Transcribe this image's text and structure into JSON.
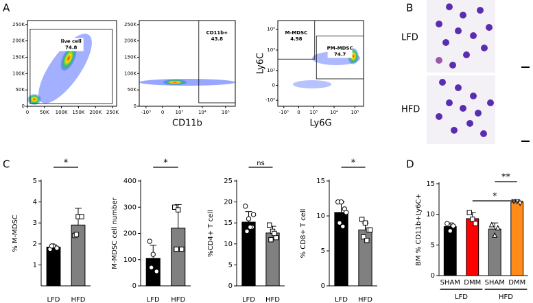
{
  "chart_data": [
    {
      "type": "flow",
      "panel": "A",
      "xscale": "linear",
      "yscale": "linear",
      "xlim": [
        0,
        262144
      ],
      "ylim": [
        0,
        262144
      ],
      "xticks": [
        0,
        {
          "value": 50000,
          "label": "50K"
        },
        {
          "value": 100000,
          "label": "100K"
        },
        {
          "value": 150000,
          "label": "150K"
        },
        {
          "value": 200000,
          "label": "200K"
        },
        {
          "value": 250000,
          "label": "250K"
        }
      ],
      "yticks": [
        0,
        {
          "value": 50000,
          "label": "50K"
        },
        {
          "value": 100000,
          "label": "100K"
        },
        {
          "value": 150000,
          "label": "150K"
        },
        {
          "value": 200000,
          "label": "200K"
        },
        {
          "value": 250000,
          "label": "250K"
        }
      ],
      "gates": [
        {
          "name": "live cell",
          "value": 74.8
        }
      ]
    },
    {
      "type": "flow",
      "xlabel": "CD11b",
      "xscale": "biexponential",
      "yscale": "linear",
      "xlim": [
        -2000,
        262144
      ],
      "ylim": [
        0,
        262144
      ],
      "xticks": [
        {
          "value": -1000,
          "label": "-10³"
        },
        0,
        {
          "value": 1000,
          "label": "10³"
        },
        {
          "value": 10000,
          "label": "10⁴"
        },
        {
          "value": 100000,
          "label": "10⁵"
        }
      ],
      "yticks": [
        0,
        {
          "value": 50000,
          "label": "50K"
        },
        {
          "value": 100000,
          "label": "100K"
        },
        {
          "value": 150000,
          "label": "150K"
        },
        {
          "value": 200000,
          "label": "200K"
        },
        {
          "value": 250000,
          "label": "250K"
        }
      ],
      "gates": [
        {
          "name": "CD11b+",
          "value": 43.8
        }
      ]
    },
    {
      "type": "flow",
      "xlabel": "Ly6G",
      "ylabel": "Ly6C",
      "xscale": "biexponential",
      "yscale": "biexponential",
      "xlim": [
        -2000,
        262144
      ],
      "ylim": [
        -2000,
        262144
      ],
      "xticks": [
        {
          "value": -1000,
          "label": "-10³"
        },
        0,
        {
          "value": 1000,
          "label": "10³"
        },
        {
          "value": 10000,
          "label": "10⁴"
        },
        {
          "value": 100000,
          "label": "10⁵"
        }
      ],
      "yticks": [
        {
          "value": -1000,
          "label": "-10³"
        },
        0,
        {
          "value": 1000,
          "label": "10³"
        },
        {
          "value": 10000,
          "label": "10⁴"
        },
        {
          "value": 100000,
          "label": "10⁵"
        }
      ],
      "gates": [
        {
          "name": "M-MDSC",
          "value": 4.98
        },
        {
          "name": "PM-MDSC",
          "value": 74.7
        }
      ]
    },
    {
      "type": "image",
      "panel": "B",
      "labels": [
        "LFD",
        "HFD"
      ]
    },
    {
      "type": "bar",
      "panel": "C",
      "ylabel": "% M-MDSC",
      "categories": [
        "LFD",
        "HFD"
      ],
      "values": [
        1.85,
        2.9
      ],
      "errors": [
        0.1,
        0.8
      ],
      "colors": [
        "#000000",
        "#808080"
      ],
      "markers": [
        "circle",
        "square"
      ],
      "points": [
        [
          1.75,
          1.9,
          1.8,
          1.9
        ],
        [
          2.4,
          3.3,
          3.3,
          2.45
        ]
      ],
      "ylim": [
        0,
        5
      ],
      "yticks": [
        1,
        2,
        3,
        4,
        5
      ],
      "significance": [
        {
          "label": "*",
          "between": [
            0,
            1
          ]
        }
      ]
    },
    {
      "type": "bar",
      "ylabel": "M-MDSC cell number",
      "categories": [
        "LFD",
        "HFD"
      ],
      "values": [
        105,
        220
      ],
      "errors": [
        50,
        90
      ],
      "colors": [
        "#000000",
        "#808080"
      ],
      "markers": [
        "circle",
        "square"
      ],
      "points": [
        [
          170,
          120,
          55,
          70
        ],
        [
          300,
          290,
          140,
          140
        ]
      ],
      "ylim": [
        0,
        400
      ],
      "yticks": [
        0,
        100,
        200,
        300,
        400
      ],
      "significance": [
        {
          "label": "*",
          "between": [
            0,
            1
          ]
        }
      ]
    },
    {
      "type": "bar",
      "ylabel": "%CD4+ T cell",
      "categories": [
        "LFD",
        "HFD"
      ],
      "values": [
        15.2,
        12.6
      ],
      "errors": [
        2.5,
        1.6
      ],
      "colors": [
        "#000000",
        "#808080"
      ],
      "markers": [
        "circle",
        "square"
      ],
      "points": [
        [
          19,
          16,
          14,
          13,
          14,
          17
        ],
        [
          14.5,
          13,
          11.5,
          11,
          12.5
        ]
      ],
      "ylim": [
        0,
        25
      ],
      "yticks": [
        0,
        5,
        10,
        15,
        20,
        25
      ],
      "significance": [
        {
          "label": "ns",
          "between": [
            0,
            1
          ]
        }
      ]
    },
    {
      "type": "bar",
      "ylabel": "% CD8+ T cell",
      "categories": [
        "LFD",
        "HFD"
      ],
      "values": [
        10.5,
        8
      ],
      "errors": [
        1.5,
        1
      ],
      "colors": [
        "#000000",
        "#808080"
      ],
      "markers": [
        "circle",
        "square"
      ],
      "points": [
        [
          12,
          12,
          11,
          9,
          8.5,
          10.5
        ],
        [
          9.5,
          9,
          8,
          7,
          6.5,
          8
        ]
      ],
      "ylim": [
        0,
        15
      ],
      "yticks": [
        0,
        5,
        10,
        15
      ],
      "significance": [
        {
          "label": "*",
          "between": [
            0,
            1
          ]
        }
      ]
    },
    {
      "type": "bar",
      "panel": "D",
      "ylabel": "BM % CD11b+Ly6C+",
      "categories": [
        "SHAM",
        "DMM",
        "SHAM",
        "DMM"
      ],
      "groups": [
        "LFD",
        "HFD"
      ],
      "values": [
        8,
        9.3,
        7.6,
        12
      ],
      "errors": [
        0.6,
        1,
        1,
        0.3
      ],
      "colors": [
        "#000000",
        "#ff0000",
        "#808080",
        "#ff8c1a"
      ],
      "markers": [
        "circle",
        "square",
        "triangle",
        "triangle-down"
      ],
      "points": [
        [
          8.5,
          7.3,
          8.1
        ],
        [
          10.3,
          9.2,
          8.5
        ],
        [
          8.3,
          6.6,
          7.8
        ],
        [
          12.1,
          12.1,
          11.8
        ]
      ],
      "ylim": [
        0,
        15
      ],
      "yticks": [
        0,
        5,
        10,
        15
      ],
      "significance": [
        {
          "label": "*",
          "between": [
            1,
            3
          ]
        },
        {
          "label": "**",
          "between": [
            2,
            3
          ]
        }
      ]
    }
  ]
}
